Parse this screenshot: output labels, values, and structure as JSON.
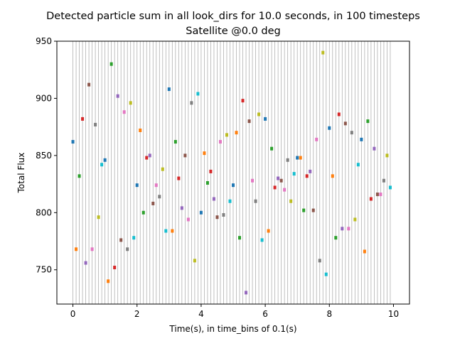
{
  "chart_data": {
    "type": "scatter",
    "title": "Detected particle sum in all look_dirs for 10.0 seconds, in 100 timesteps",
    "subtitle": "Satellite @0.0 deg",
    "xlabel": "Time(s), in time_bins of 0.1(s)",
    "ylabel": "Total Flux",
    "xlim": [
      -0.5,
      10.5
    ],
    "ylim": [
      720,
      950
    ],
    "xticks": [
      0,
      2,
      4,
      6,
      8,
      10
    ],
    "yticks": [
      750,
      800,
      850,
      900,
      950
    ],
    "grid": "vertical lines at every time bin",
    "legend": "none",
    "colors": [
      "#1f77b4",
      "#ff7f0e",
      "#2ca02c",
      "#d62728",
      "#9467bd",
      "#8c564b",
      "#e377c2",
      "#7f7f7f",
      "#bcbd22",
      "#17becf"
    ],
    "x": [
      0.0,
      0.1,
      0.2,
      0.3,
      0.4,
      0.5,
      0.6,
      0.7,
      0.8,
      0.9,
      1.0,
      1.1,
      1.2,
      1.3,
      1.4,
      1.5,
      1.6,
      1.7,
      1.8,
      1.9,
      2.0,
      2.1,
      2.2,
      2.3,
      2.4,
      2.5,
      2.6,
      2.7,
      2.8,
      2.9,
      3.0,
      3.1,
      3.2,
      3.3,
      3.4,
      3.5,
      3.6,
      3.7,
      3.8,
      3.9,
      4.0,
      4.1,
      4.2,
      4.3,
      4.4,
      4.5,
      4.6,
      4.7,
      4.8,
      4.9,
      5.0,
      5.1,
      5.2,
      5.3,
      5.4,
      5.5,
      5.6,
      5.7,
      5.8,
      5.9,
      6.0,
      6.1,
      6.2,
      6.3,
      6.4,
      6.5,
      6.6,
      6.7,
      6.8,
      6.9,
      7.0,
      7.1,
      7.2,
      7.3,
      7.4,
      7.5,
      7.6,
      7.7,
      7.8,
      7.9,
      8.0,
      8.1,
      8.2,
      8.3,
      8.4,
      8.5,
      8.6,
      8.7,
      8.8,
      8.9,
      9.0,
      9.1,
      9.2,
      9.3,
      9.4,
      9.5,
      9.6,
      9.7,
      9.8,
      9.9
    ],
    "y": [
      862,
      768,
      832,
      882,
      756,
      912,
      768,
      877,
      796,
      842,
      846,
      740,
      930,
      752,
      902,
      776,
      888,
      768,
      896,
      778,
      824,
      872,
      800,
      848,
      850,
      808,
      824,
      814,
      838,
      784,
      908,
      784,
      862,
      830,
      804,
      850,
      794,
      896,
      758,
      904,
      800,
      852,
      826,
      836,
      812,
      796,
      862,
      798,
      868,
      810,
      824,
      870,
      778,
      898,
      730,
      880,
      828,
      810,
      886,
      776,
      882,
      784,
      856,
      822,
      830,
      828,
      820,
      846,
      810,
      834,
      848,
      848,
      802,
      832,
      836,
      802,
      864,
      758,
      940,
      746,
      874,
      832,
      778,
      886,
      786,
      878,
      786,
      870,
      794,
      842,
      864,
      766,
      880,
      812,
      856,
      816,
      816,
      828,
      850,
      822
    ]
  }
}
